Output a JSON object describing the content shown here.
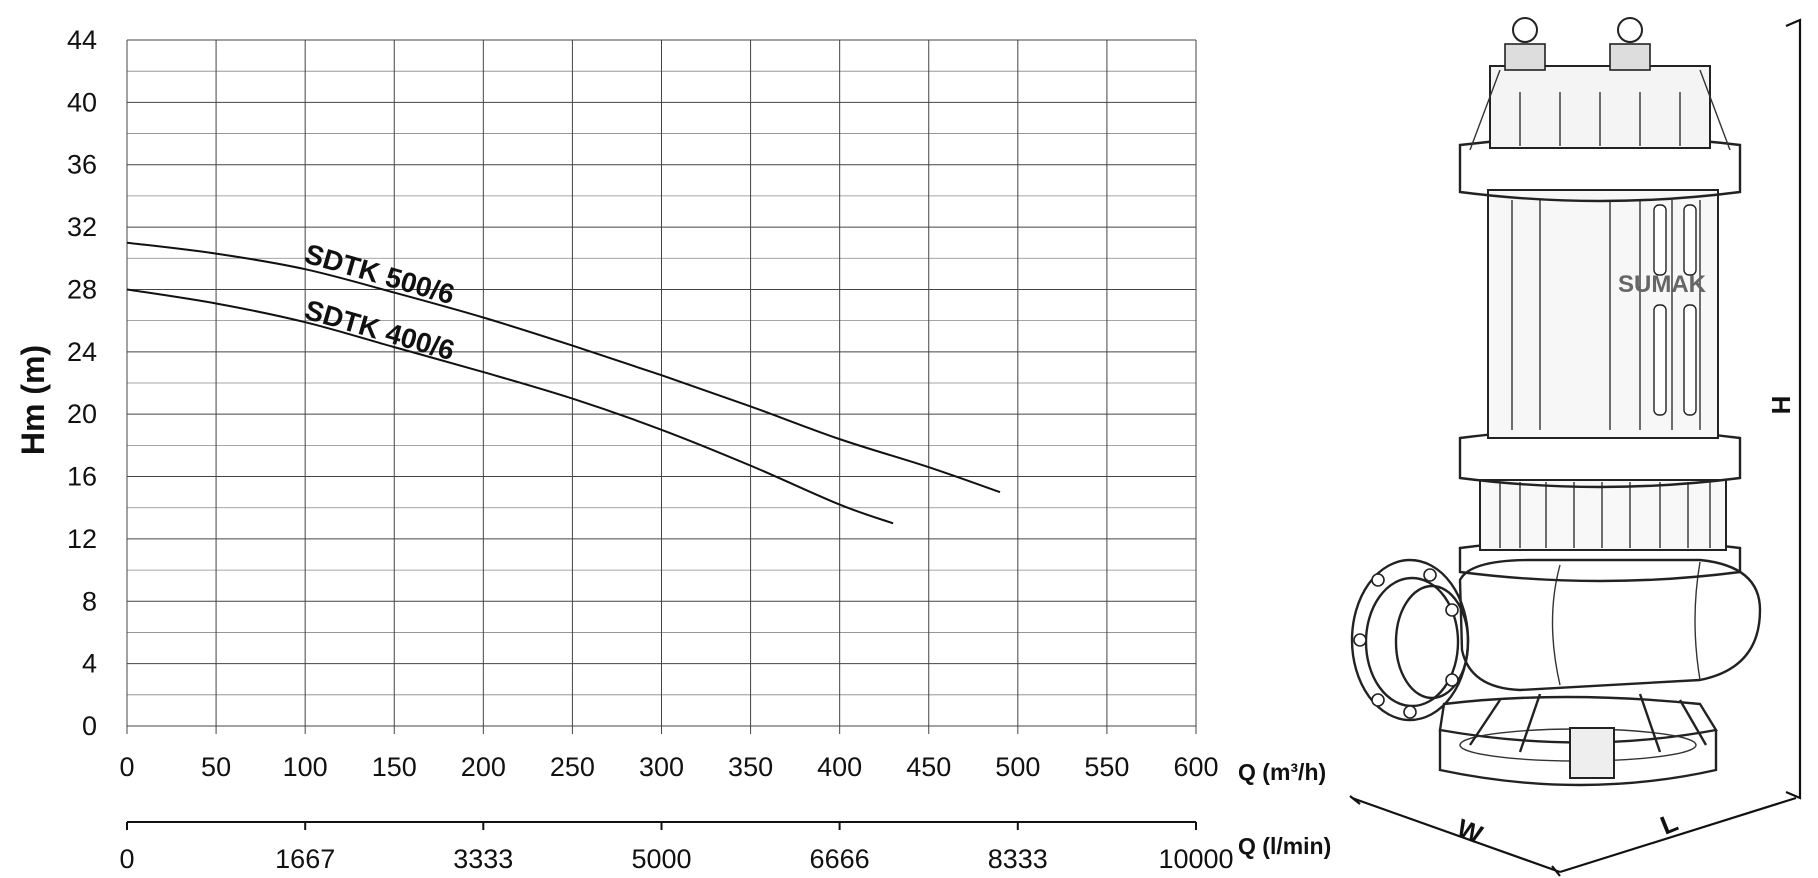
{
  "chart_data": {
    "type": "line",
    "ylabel": "Hm (m)",
    "y_ticks": [
      "0",
      "4",
      "8",
      "12",
      "16",
      "20",
      "24",
      "28",
      "32",
      "36",
      "40",
      "44"
    ],
    "ylim": [
      0,
      44
    ],
    "x_axis_flow_m3h": {
      "label": "Q (m³/h)",
      "ticks": [
        "0",
        "50",
        "100",
        "150",
        "200",
        "250",
        "300",
        "350",
        "400",
        "450",
        "500",
        "550",
        "600"
      ],
      "range": [
        0,
        600
      ]
    },
    "x_axis_flow_lmin": {
      "label": "Q (l/min)",
      "ticks": [
        "0",
        "1667",
        "3333",
        "5000",
        "6666",
        "8333",
        "10000"
      ],
      "range": [
        0,
        10000
      ]
    },
    "grid": true,
    "series": [
      {
        "name": "SDTK 500/6",
        "x": [
          0,
          50,
          100,
          150,
          200,
          250,
          300,
          350,
          400,
          450,
          490
        ],
        "y": [
          31,
          30.3,
          29.3,
          27.8,
          26.2,
          24.4,
          22.5,
          20.5,
          18.4,
          16.6,
          15
        ]
      },
      {
        "name": "SDTK 400/6",
        "x": [
          0,
          50,
          100,
          150,
          200,
          250,
          300,
          350,
          400,
          430
        ],
        "y": [
          28,
          27.1,
          25.9,
          24.3,
          22.7,
          21,
          19,
          16.7,
          14.2,
          13
        ]
      }
    ]
  },
  "product_image": {
    "brand_text": "SUMAK",
    "dimension_labels": {
      "height": "H",
      "width": "W",
      "length": "L"
    }
  }
}
